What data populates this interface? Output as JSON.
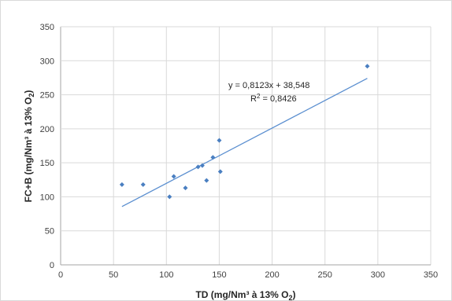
{
  "chart_data": {
    "type": "scatter",
    "xlabel_main": "TD (mg/Nm³ à 13% O",
    "xlabel_sub": "2",
    "xlabel_end": ")",
    "ylabel_main": "FC+B (mg/Nm³ à 13% O",
    "ylabel_sub": "2",
    "ylabel_end": ")",
    "xlim": [
      0,
      350
    ],
    "ylim": [
      0,
      350
    ],
    "x_ticks": [
      0,
      50,
      100,
      150,
      200,
      250,
      300,
      350
    ],
    "y_ticks": [
      0,
      50,
      100,
      150,
      200,
      250,
      300,
      350
    ],
    "grid": true,
    "series": [
      {
        "color": "#4a7fc1",
        "points": [
          {
            "x": 58,
            "y": 118
          },
          {
            "x": 78,
            "y": 118
          },
          {
            "x": 103,
            "y": 100
          },
          {
            "x": 107,
            "y": 130
          },
          {
            "x": 118,
            "y": 113
          },
          {
            "x": 130,
            "y": 144
          },
          {
            "x": 134,
            "y": 146
          },
          {
            "x": 138,
            "y": 124
          },
          {
            "x": 144,
            "y": 158
          },
          {
            "x": 150,
            "y": 183
          },
          {
            "x": 151,
            "y": 137
          },
          {
            "x": 290,
            "y": 292
          }
        ]
      }
    ],
    "trendline": {
      "slope": 0.8123,
      "intercept": 38.548,
      "x_range": [
        58,
        290
      ],
      "color": "#5b8fd0",
      "equation_label": "y = 0,8123x + 38,548",
      "r2_label_main": "R",
      "r2_label_sup": "2",
      "r2_label_value": " = 0,8426"
    }
  }
}
